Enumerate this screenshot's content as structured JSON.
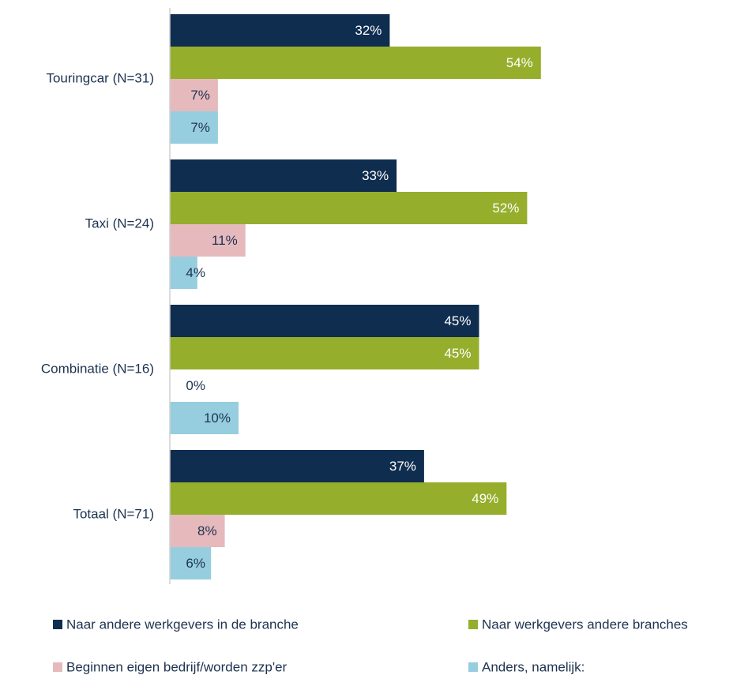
{
  "chart_data": {
    "type": "bar",
    "orientation": "horizontal",
    "categories": [
      "Touringcar (N=31)",
      "Taxi (N=24)",
      "Combinatie (N=16)",
      "Totaal (N=71)"
    ],
    "series": [
      {
        "name": "Naar andere werkgevers in de branche",
        "color": "#0f2d4f",
        "values": [
          32,
          33,
          45,
          37
        ],
        "value_labels": [
          "32%",
          "33%",
          "45%",
          "37%"
        ]
      },
      {
        "name": "Naar werkgevers andere branches",
        "color": "#95ae2c",
        "values": [
          54,
          52,
          45,
          49
        ],
        "value_labels": [
          "54%",
          "52%",
          "45%",
          "49%"
        ]
      },
      {
        "name": "Beginnen eigen bedrijf/worden zzp'er",
        "color": "#e6b9bd",
        "values": [
          7,
          11,
          0,
          8
        ],
        "value_labels": [
          "7%",
          "11%",
          "0%",
          "8%"
        ]
      },
      {
        "name": "Anders, namelijk:",
        "color": "#96cedf",
        "values": [
          7,
          4,
          10,
          6
        ],
        "value_labels": [
          "7%",
          "4%",
          "10%",
          "6%"
        ]
      }
    ],
    "xlim": [
      0,
      100
    ]
  }
}
